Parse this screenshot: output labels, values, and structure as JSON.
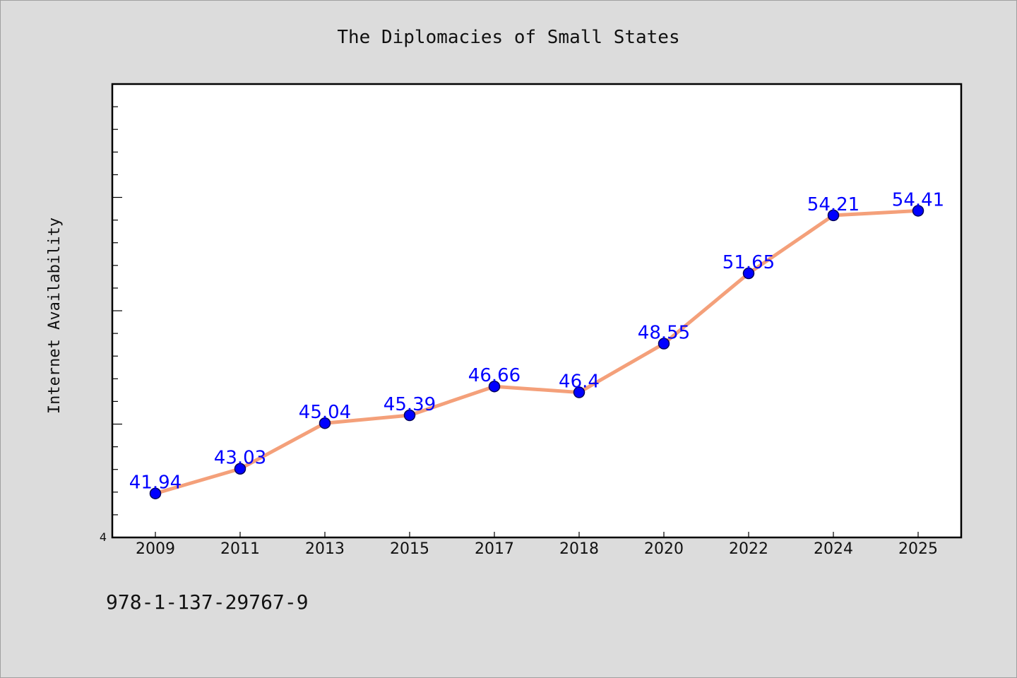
{
  "page": {
    "background": "#dcdcdc"
  },
  "footer": {
    "isbn": "978-1-137-29767-9"
  },
  "chart_data": {
    "type": "line",
    "title": "The Diplomacies of Small States",
    "xlabel": "",
    "ylabel": "Internet Availability",
    "categories": [
      "2009",
      "2011",
      "2013",
      "2015",
      "2017",
      "2018",
      "2020",
      "2022",
      "2024",
      "2025"
    ],
    "series": [
      {
        "values": [
          41.94,
          43.03,
          45.04,
          45.39,
          46.66,
          46.4,
          48.55,
          51.65,
          54.21,
          54.41
        ],
        "labels": [
          "41.94",
          "43.03",
          "45.04",
          "45.39",
          "46.66",
          "46.4",
          "48.55",
          "51.65",
          "54.21",
          "54.41"
        ]
      }
    ],
    "ylim": [
      40,
      60
    ],
    "ytick_labels": [
      "4"
    ],
    "grid": false,
    "legend": "none",
    "colors": {
      "line": "#f4a07a",
      "marker": "#0000ff",
      "marker_edge": "#00005a",
      "data_label": "#0000ff",
      "plot_background": "#ffffff",
      "axes": "#000000"
    }
  }
}
